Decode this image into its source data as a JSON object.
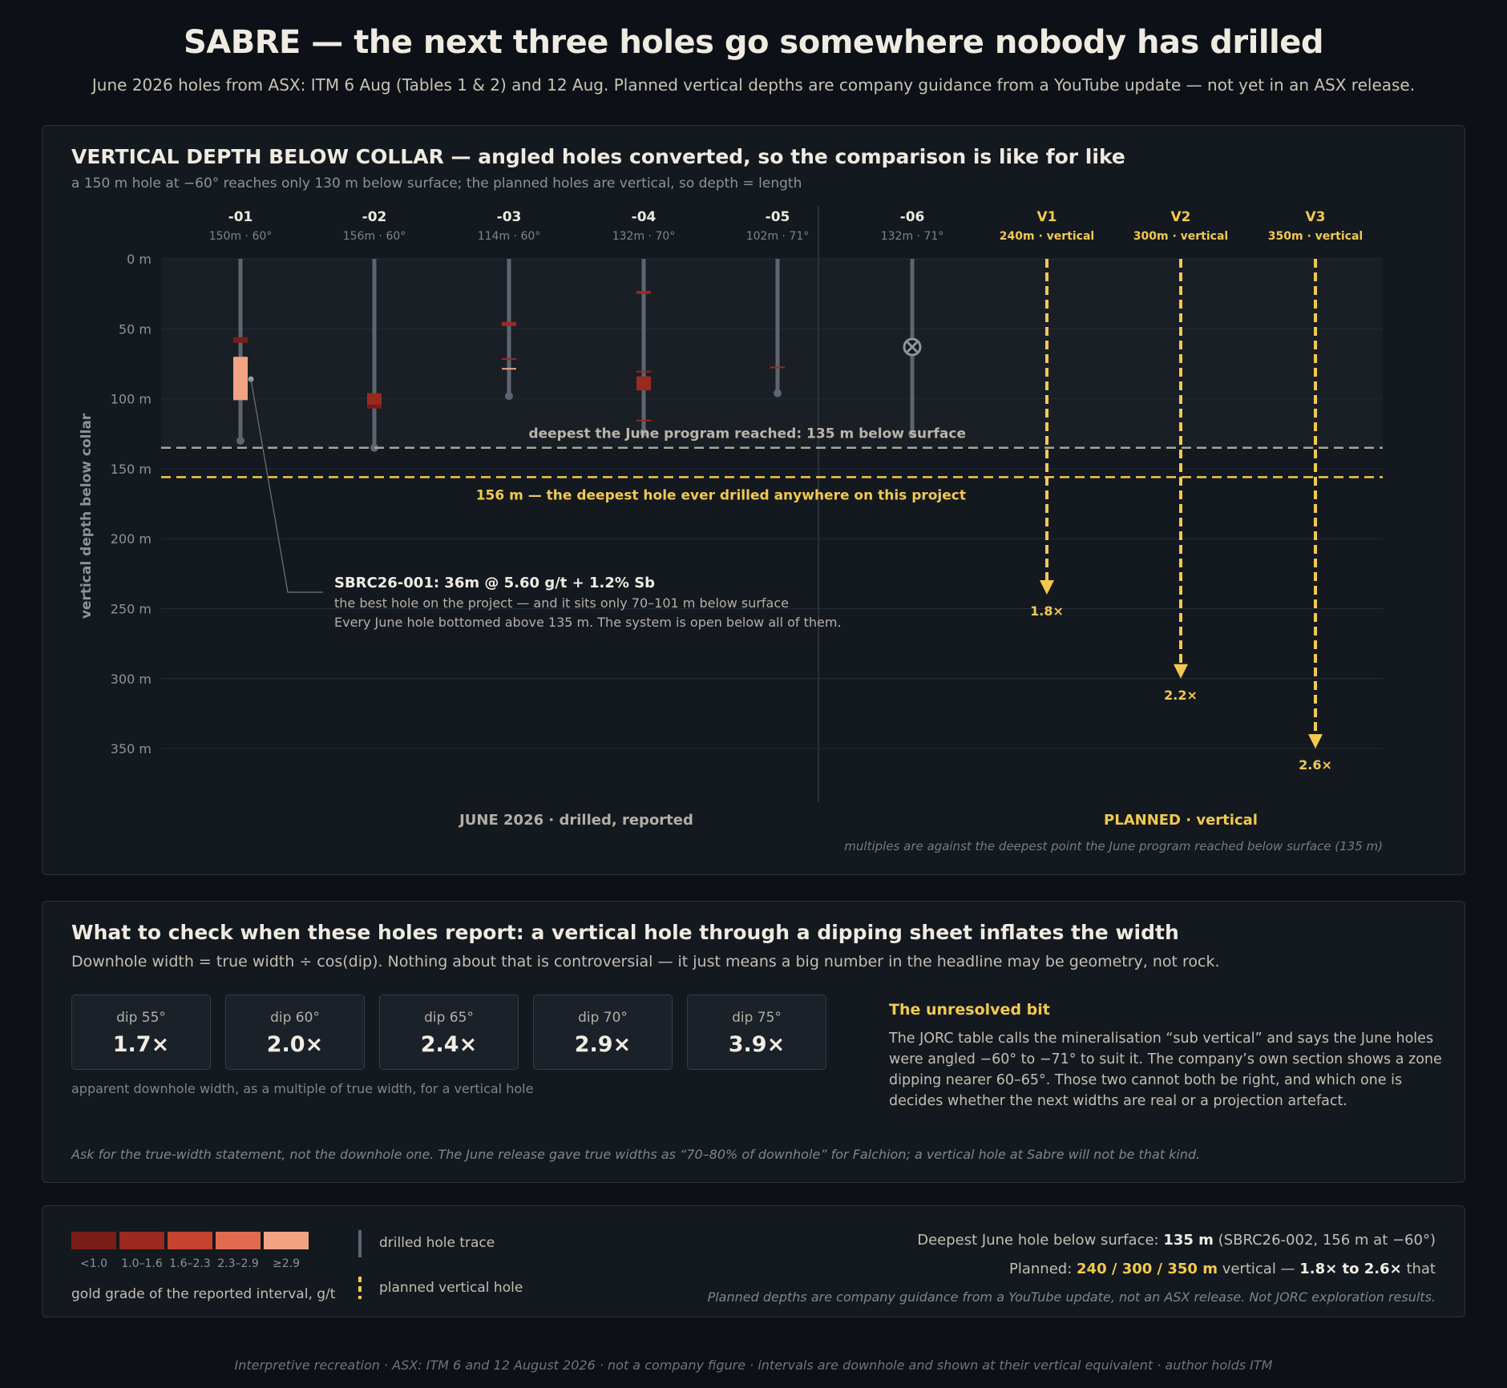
{
  "header": {
    "title": "SABRE — the next three holes go somewhere nobody has drilled",
    "subtitle": "June 2026 holes from ASX: ITM 6 Aug (Tables 1 & 2) and 12 Aug. Planned vertical depths are company guidance from a YouTube update — not yet in an ASX release."
  },
  "chart_panel": {
    "title": "VERTICAL DEPTH BELOW COLLAR — angled holes converted, so the comparison is like for like",
    "subtitle": "a 150 m hole at −60° reaches only 130 m below surface; the planned holes are vertical, so depth = length"
  },
  "chart_data": {
    "type": "depth-profile",
    "ylabel": "vertical depth below collar",
    "y_unit": "m",
    "ylim": [
      0,
      390
    ],
    "y_ticks": [
      0,
      50,
      100,
      150,
      200,
      250,
      300,
      350
    ],
    "y_tick_labels": [
      "0 m",
      "50 m",
      "100 m",
      "150 m",
      "200 m",
      "250 m",
      "300 m",
      "350 m"
    ],
    "drilled_holes": [
      {
        "id": "-01",
        "spec": "150m · 60°",
        "vertical_depth": 130,
        "intervals": [
          {
            "top": 56,
            "bottom": 60,
            "grade": 0.8
          },
          {
            "top": 70,
            "bottom": 101,
            "grade": 5.6
          }
        ]
      },
      {
        "id": "-02",
        "spec": "156m · 60°",
        "vertical_depth": 135,
        "intervals": [
          {
            "top": 96,
            "bottom": 106,
            "grade": 1.3
          },
          {
            "top": 104,
            "bottom": 107,
            "grade": 0.8
          }
        ]
      },
      {
        "id": "-03",
        "spec": "114m · 60°",
        "vertical_depth": 98,
        "intervals": [
          {
            "top": 45,
            "bottom": 48,
            "grade": 1.4
          },
          {
            "top": 71,
            "bottom": 72,
            "grade": 1.2
          },
          {
            "top": 78,
            "bottom": 79,
            "grade": 3.0
          }
        ]
      },
      {
        "id": "-04",
        "spec": "132m · 70°",
        "vertical_depth": 124,
        "intervals": [
          {
            "top": 23,
            "bottom": 25,
            "grade": 1.3
          },
          {
            "top": 80,
            "bottom": 81,
            "grade": 1.2
          },
          {
            "top": 84,
            "bottom": 94,
            "grade": 1.3
          },
          {
            "top": 115,
            "bottom": 116,
            "grade": 1.2
          }
        ]
      },
      {
        "id": "-05",
        "spec": "102m · 71°",
        "vertical_depth": 96,
        "intervals": [
          {
            "top": 77,
            "bottom": 78,
            "grade": 1.2
          }
        ]
      },
      {
        "id": "-06",
        "spec": "132m · 71°",
        "vertical_depth": 125,
        "intervals": [],
        "abandoned_at": 63
      }
    ],
    "planned_holes": [
      {
        "id": "V1",
        "spec": "240m · vertical",
        "depth": 240,
        "multiple": "1.8×"
      },
      {
        "id": "V2",
        "spec": "300m · vertical",
        "depth": 300,
        "multiple": "2.2×"
      },
      {
        "id": "V3",
        "spec": "350m · vertical",
        "depth": 350,
        "multiple": "2.6×"
      }
    ],
    "reference_lines": [
      {
        "depth": 135,
        "label": "deepest the June program reached: 135 m below surface",
        "style": "grey-dashed"
      },
      {
        "depth": 156,
        "label": "156 m — the deepest hole ever drilled anywhere on this project",
        "style": "yellow-dashed"
      }
    ],
    "annotation": {
      "title": "SBRC26-001: 36m @ 5.60 g/t + 1.2% Sb",
      "line1": "the best hole on the project — and it sits only 70–101 m below surface",
      "line2": "Every June hole bottomed above 135 m. The system is open below all of them.",
      "anchor_hole": "-01",
      "anchor_depth": 86
    },
    "section_labels": {
      "drilled": "JUNE 2026 · drilled, reported",
      "planned": "PLANNED · vertical"
    },
    "footnote": "multiples are against the deepest point the June program reached below surface (135 m)",
    "grade_colors": [
      "#7a1c17",
      "#9a2a1f",
      "#c5432f",
      "#e06b4f",
      "#f2a384"
    ],
    "drill_color": "#5c6570",
    "planned_color": "#f2c94c",
    "grid": true
  },
  "check_panel": {
    "title": "What to check when these holes report: a vertical hole through a dipping sheet inflates the width",
    "subtitle": "Downhole width = true width ÷ cos(dip). Nothing about that is controversial — it just means a big number in the headline may be geometry, not rock.",
    "cards": [
      {
        "label": "dip 55°",
        "value": "1.7×"
      },
      {
        "label": "dip 60°",
        "value": "2.0×"
      },
      {
        "label": "dip 65°",
        "value": "2.4×"
      },
      {
        "label": "dip 70°",
        "value": "2.9×"
      },
      {
        "label": "dip 75°",
        "value": "3.9×"
      }
    ],
    "cards_caption": "apparent downhole width, as a multiple of true width, for a vertical hole",
    "unresolved_title": "The unresolved bit",
    "unresolved_body": "The JORC table calls the mineralisation “sub vertical” and says the June holes were angled −60° to −71° to suit it. The company’s own section shows a zone dipping nearer 60–65°. Those two cannot both be right, and which one is decides whether the next widths are real or a projection artefact.",
    "note": "Ask for the true-width statement, not the downhole one. The June release gave true widths as “70–80% of downhole” for Falchion; a vertical hole at Sabre will not be that kind."
  },
  "legend": {
    "grade_bins": [
      "<1.0",
      "1.0–1.6",
      "1.6–2.3",
      "2.3–2.9",
      "≥2.9"
    ],
    "grade_caption": "gold grade of the reported interval, g/t",
    "drilled_label": "drilled hole trace",
    "planned_label": "planned vertical hole",
    "stat1_prefix": "Deepest June hole below surface: ",
    "stat1_value": "135 m",
    "stat1_suffix": " (SBRC26-002, 156 m at −60°)",
    "stat2_prefix": "Planned: ",
    "stat2_value": "240 / 300 / 350 m",
    "stat2_mid": " vertical — ",
    "stat2_range": "1.8× to 2.6×",
    "stat2_suffix": " that",
    "stat3": "Planned depths are company guidance from a YouTube update, not an ASX release. Not JORC exploration results."
  },
  "footer": "Interpretive recreation · ASX: ITM 6 and 12 August 2026 · not a company figure · intervals are downhole and shown at their vertical equivalent · author holds ITM"
}
